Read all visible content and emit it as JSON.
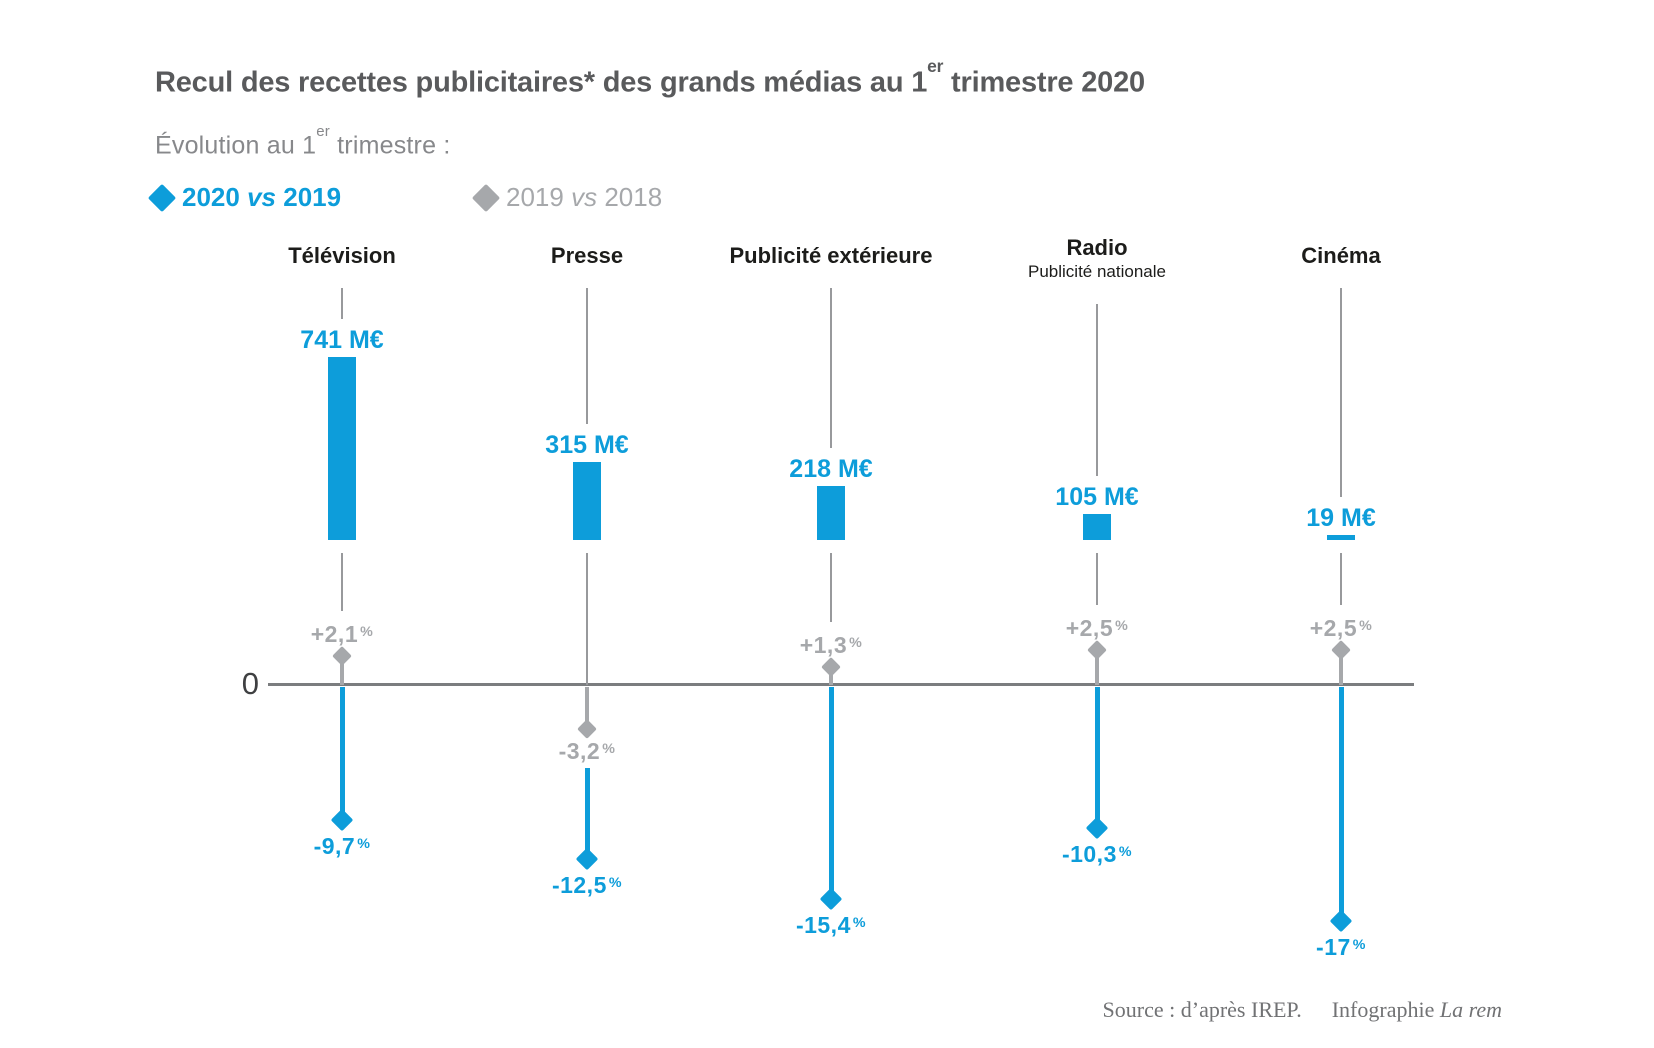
{
  "title": {
    "part1": "Recul des recettes publicitaires* des grands médias au 1",
    "sup": "er",
    "part2": " trimestre 2020"
  },
  "subtitle": {
    "part1": "Évolution au 1",
    "sup": "er",
    "part2": " trimestre  :"
  },
  "legend": {
    "blue": {
      "year_a": "2020",
      "vs": "vs",
      "year_b": "2019"
    },
    "gray": {
      "year_a": "2019",
      "vs": "vs",
      "year_b": "2018"
    }
  },
  "axis": {
    "zero_label": "0"
  },
  "source": {
    "credit": "Source : d’après IREP.",
    "infography_label": "Infographie",
    "infography_name": "La rem"
  },
  "colors": {
    "blue": "#0d9dda",
    "gray": "#a6a8ab",
    "guide": "#98999c",
    "axis": "#7b7d7f",
    "title": "#595a5c",
    "subtitle": "#87888b",
    "category": "#1c1c1a",
    "source": "#717274",
    "zero": "#3f4042"
  },
  "columns": [
    {
      "key": "television",
      "label": "Télévision",
      "sublabel": "",
      "value_label": "741 M€",
      "pct2019": "+2,1",
      "pct2020": "-9,7"
    },
    {
      "key": "presse",
      "label": "Presse",
      "sublabel": "",
      "value_label": "315 M€",
      "pct2019": "-3,2",
      "pct2020": "-12,5"
    },
    {
      "key": "publicite-exterieure",
      "label": "Publicité extérieure",
      "sublabel": "",
      "value_label": "218 M€",
      "pct2019": "+1,3",
      "pct2020": "-15,4"
    },
    {
      "key": "radio",
      "label": "Radio",
      "sublabel": "Publicité nationale",
      "value_label": "105 M€",
      "pct2019": "+2,5",
      "pct2020": "-10,3"
    },
    {
      "key": "cinema",
      "label": "Cinéma",
      "sublabel": "",
      "value_label": "19 M€",
      "pct2019": "+2,5",
      "pct2020": "-17"
    }
  ],
  "chart_data": {
    "type": "bar",
    "title": "Recul des recettes publicitaires* des grands médias au 1er trimestre 2020",
    "subtitle": "Évolution au 1er trimestre : 2020 vs 2019 (bleu), 2019 vs 2018 (gris)",
    "categories": [
      "Télévision",
      "Presse",
      "Publicité extérieure",
      "Radio (Publicité nationale)",
      "Cinéma"
    ],
    "series": [
      {
        "name": "Recettes publicitaires T1 2020 (M€)",
        "values": [
          741,
          315,
          218,
          105,
          19
        ]
      },
      {
        "name": "Évolution T1 2020 vs 2019 (%)",
        "values": [
          -9.7,
          -12.5,
          -15.4,
          -10.3,
          -17
        ]
      },
      {
        "name": "Évolution T1 2019 vs 2018 (%)",
        "values": [
          2.1,
          -3.2,
          1.3,
          2.5,
          2.5
        ]
      }
    ],
    "value_labels": [
      "741 M€",
      "315 M€",
      "218 M€",
      "105 M€",
      "19 M€"
    ],
    "pct_2020_labels": [
      "-9,7",
      "-12,5",
      "-15,4",
      "-10,3",
      "-17"
    ],
    "pct_2019_labels": [
      "+2,1",
      "-3,2",
      "+1,3",
      "+2,5",
      "+2,5"
    ],
    "pct_unit": "%",
    "axis_zero_label": "0",
    "grid": false,
    "legend_position": "top-left",
    "source": "Source : d’après IREP. Infographie La rem"
  }
}
